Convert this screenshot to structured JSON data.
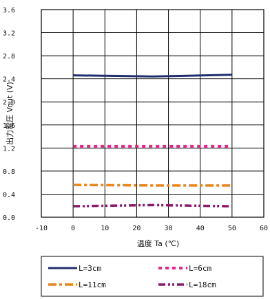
{
  "chart_data": {
    "type": "line",
    "xlabel": "温度 Ta (℃)",
    "ylabel": "出力電圧 Vout (V)",
    "xlim": [
      -10,
      60
    ],
    "ylim": [
      0.0,
      3.6
    ],
    "xticks": [
      "-10",
      "0",
      "10",
      "20",
      "30",
      "40",
      "50",
      "60"
    ],
    "yticks": [
      "0.0",
      "0.4",
      "0.8",
      "1.2",
      "1.6",
      "2.0",
      "2.4",
      "2.8",
      "3.2",
      "3.6"
    ],
    "grid": true,
    "legend_position": "bottom",
    "series": [
      {
        "name": "L=3cm",
        "color": "#1f2e6e",
        "dash": "solid",
        "x": [
          0,
          25,
          50
        ],
        "y": [
          2.46,
          2.44,
          2.47
        ]
      },
      {
        "name": "L=6cm",
        "color": "#e8248a",
        "dash": "dotted",
        "x": [
          0,
          25,
          50
        ],
        "y": [
          1.23,
          1.23,
          1.23
        ]
      },
      {
        "name": "L=11cm",
        "color": "#e7851f",
        "dash": "dashdot",
        "x": [
          0,
          25,
          50
        ],
        "y": [
          0.56,
          0.55,
          0.55
        ]
      },
      {
        "name": "L=18cm",
        "color": "#8b1a6e",
        "dash": "dashdotdot",
        "x": [
          0,
          25,
          50
        ],
        "y": [
          0.19,
          0.21,
          0.19
        ]
      }
    ]
  }
}
